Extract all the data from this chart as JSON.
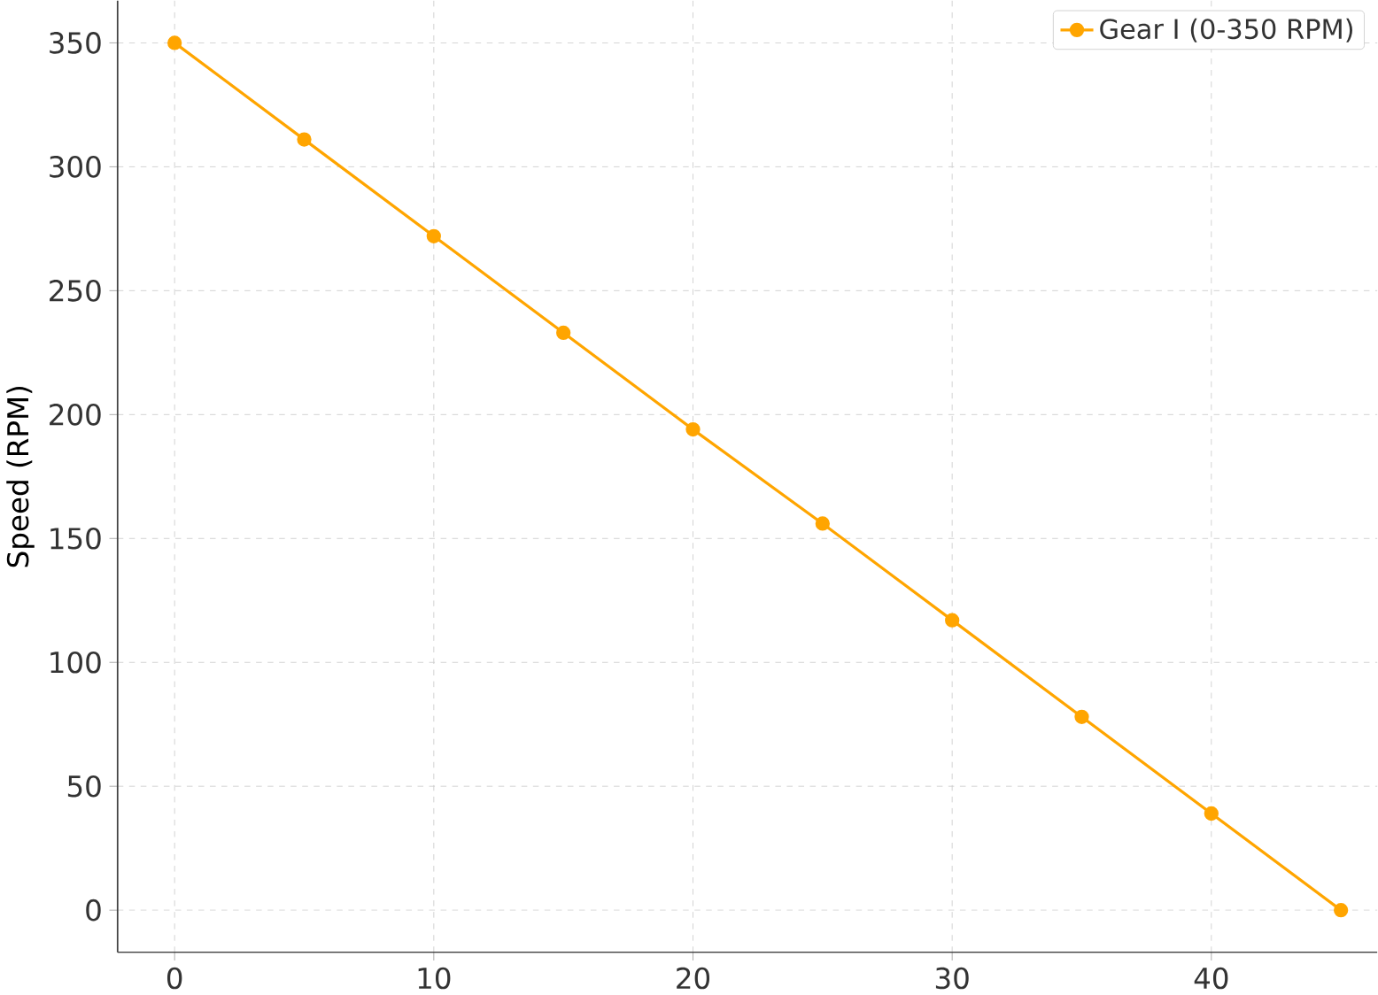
{
  "chart_data": {
    "type": "line",
    "ylabel": "Speed (RPM)",
    "x": [
      0,
      5,
      10,
      15,
      20,
      25,
      30,
      35,
      40,
      45
    ],
    "series": [
      {
        "name": "Gear I (0-350 RPM)",
        "color": "#ffa500",
        "values": [
          350,
          311,
          272,
          233,
          194,
          156,
          117,
          78,
          39,
          0
        ]
      }
    ],
    "xlim": [
      -2.2,
      46.4
    ],
    "ylim": [
      -17,
      367
    ],
    "xticks": [
      0,
      10,
      20,
      30,
      40
    ],
    "yticks": [
      0,
      50,
      100,
      150,
      200,
      250,
      300,
      350
    ],
    "grid": true,
    "legend": "top right",
    "marker": "circle",
    "line_style": "solid"
  }
}
